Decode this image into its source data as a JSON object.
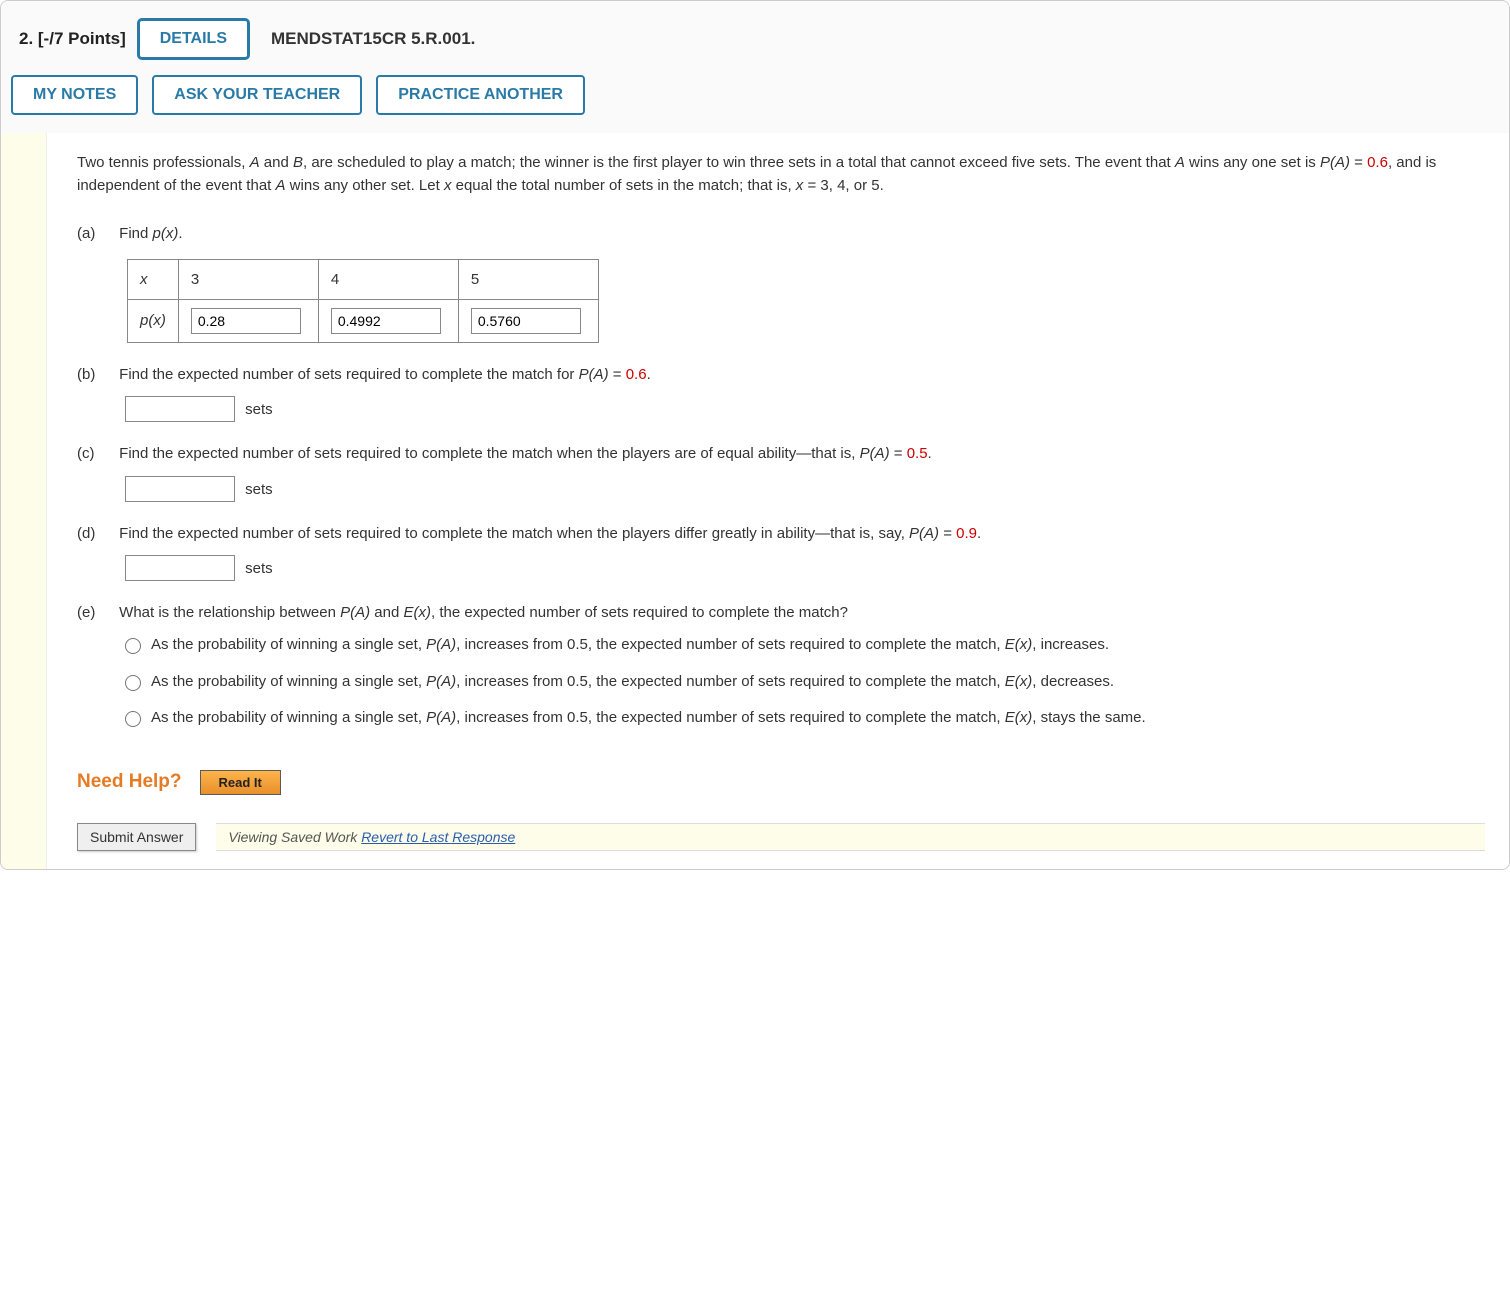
{
  "header": {
    "points_label": "2. [-/7 Points]",
    "details_btn": "DETAILS",
    "question_code": "MENDSTAT15CR 5.R.001.",
    "my_notes_btn": "MY NOTES",
    "ask_teacher_btn": "ASK YOUR TEACHER",
    "practice_another_btn": "PRACTICE ANOTHER"
  },
  "intro": {
    "text_pre": "Two tennis professionals, ",
    "A": "A",
    "text_and": " and ",
    "B": "B",
    "text_mid1": ", are scheduled to play a match; the winner is the first player to win three sets in a total that cannot exceed five sets. The event that ",
    "text_mid2": " wins any one set is ",
    "PA": "P(A)",
    "eq_sign": " = ",
    "pa_val": "0.6",
    "text_mid3": ", and is independent of the event that ",
    "text_mid4": " wins any other set. Let ",
    "x": "x",
    "text_mid5": " equal the total number of sets in the match; that is, ",
    "text_end": " = 3, 4, or 5."
  },
  "part_a": {
    "label": "(a)",
    "text_pre": "Find ",
    "px": "p(x)",
    "period": ".",
    "table": {
      "row_x_label": "x",
      "row_px_label": "p(x)",
      "cols": [
        "3",
        "4",
        "5"
      ],
      "values": [
        "0.28",
        "0.4992",
        "0.5760"
      ]
    }
  },
  "part_b": {
    "label": "(b)",
    "text_pre": "Find the expected number of sets required to complete the match for ",
    "PA": "P(A)",
    "eq": " = ",
    "val": "0.6",
    "period": ".",
    "unit": "sets",
    "value": ""
  },
  "part_c": {
    "label": "(c)",
    "text_pre": "Find the expected number of sets required to complete the match when the players are of equal ability—that is, ",
    "PA": "P(A)",
    "eq": " = ",
    "val": "0.5",
    "period": ".",
    "unit": "sets",
    "value": ""
  },
  "part_d": {
    "label": "(d)",
    "text_pre": "Find the expected number of sets required to complete the match when the players differ greatly in ability—that is, say, ",
    "PA": "P(A)",
    "eq": " = ",
    "val": "0.9",
    "period": ".",
    "unit": "sets",
    "value": ""
  },
  "part_e": {
    "label": "(e)",
    "text_pre": "What is the relationship between ",
    "PA": "P(A)",
    "text_and": " and ",
    "Ex": "E(x)",
    "text_post": ", the expected number of sets required to complete the match?",
    "opt1_pre": "As the probability of winning a single set, ",
    "opt1_mid": ", increases from 0.5, the expected number of sets required to complete the match, ",
    "opt1_end": ", increases.",
    "opt2_end": ", decreases.",
    "opt3_end": ", stays the same."
  },
  "need_help": {
    "label": "Need Help?",
    "read_it": "Read It"
  },
  "footer": {
    "submit": "Submit Answer",
    "saved_text": "Viewing Saved Work ",
    "revert_link": "Revert to Last Response"
  }
}
